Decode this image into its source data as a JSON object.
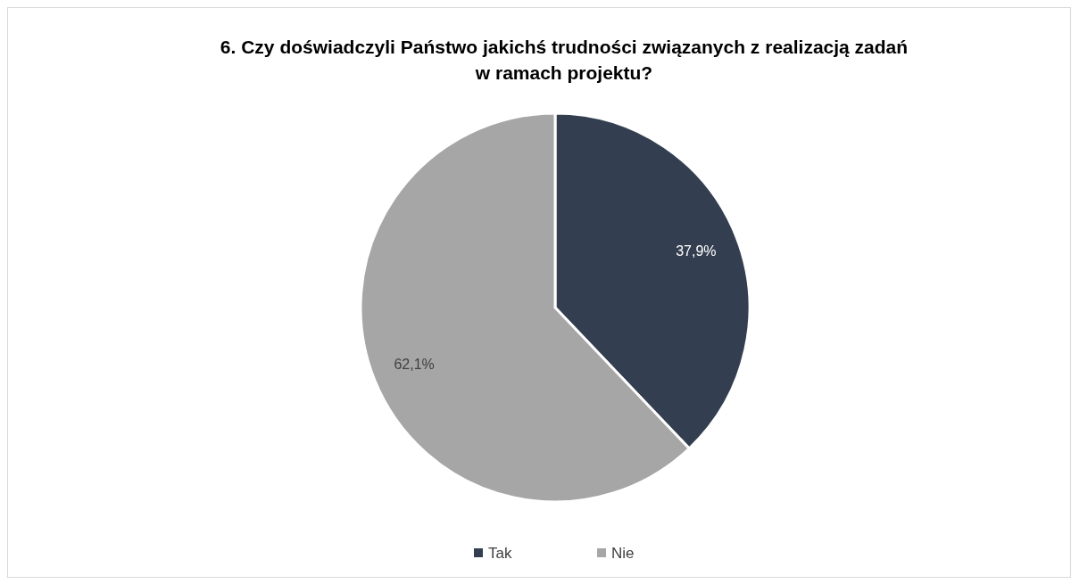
{
  "chart_data": {
    "type": "pie",
    "title": "6. Czy doświadczyli Państwo jakichś trudności związanych z realizacją zadań\nw ramach projektu?",
    "categories": [
      "Tak",
      "Nie"
    ],
    "values": [
      37.9,
      62.1
    ],
    "value_labels": [
      "37,9%",
      "62,1%"
    ],
    "colors": [
      "#333f50",
      "#a6a6a6"
    ],
    "legend": "bottom"
  }
}
